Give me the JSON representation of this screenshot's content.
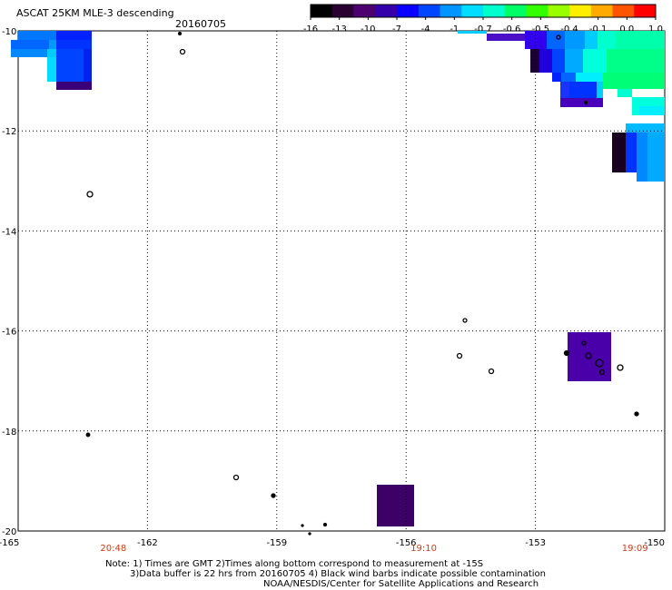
{
  "header": {
    "title": "ASCAT 25KM MLE-3 descending",
    "date": "20160705"
  },
  "colorbar": {
    "tick_labels": [
      "-16",
      "-13",
      "-10",
      "-7",
      "-4",
      "-1",
      "-0.7",
      "-0.6",
      "-0.5",
      "-0.4",
      "-0.1",
      "0.0",
      "1.0"
    ],
    "colors": [
      "#000000",
      "#2a0033",
      "#4d0070",
      "#3500aa",
      "#0a00ff",
      "#0045ff",
      "#0095ff",
      "#00ddff",
      "#00ffcc",
      "#00ff66",
      "#33ff00",
      "#99ff00",
      "#ffee00",
      "#ffaa00",
      "#ff5500",
      "#ff0000"
    ]
  },
  "map": {
    "lon_labels": [
      "-165",
      "-162",
      "-159",
      "-156",
      "-153",
      "-150"
    ],
    "lat_labels": [
      "-10",
      "-12",
      "-14",
      "-16",
      "-18",
      "-20"
    ],
    "lon_range": [
      -165,
      -150
    ],
    "lat_range": [
      -20,
      -10
    ],
    "grid": "dotted"
  },
  "time_labels": [
    {
      "text": "20:48",
      "lon": -162.8
    },
    {
      "text": "19:10",
      "lon": -155.6
    },
    {
      "text": "19:09",
      "lon": -150.7
    }
  ],
  "notes": [
    "Note: 1) Times are GMT 2)Times along bottom correspond to measurement at -15S",
    "3)Data buffer is 22 hrs from 20160705 4) Black wind barbs indicate possible contamination",
    "NOAA/NESDIS/Center for Satellite Applications and Research"
  ]
}
